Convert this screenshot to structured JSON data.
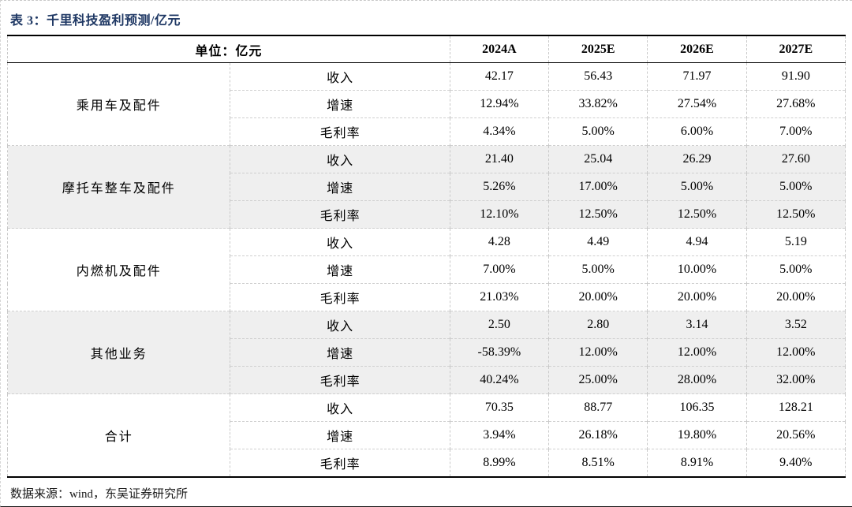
{
  "title": "表 3：千里科技盈利预测/亿元",
  "header": {
    "unit_label": "单位：亿元",
    "year_columns": [
      "2024A",
      "2025E",
      "2026E",
      "2027E"
    ]
  },
  "footer": {
    "source": "数据来源：wind，东吴证券研究所"
  },
  "colors": {
    "title_navy": "#1F3864",
    "stripe_bg": "#EFEFEF",
    "rule_black": "#000000",
    "inner_border": "#C9C9C9"
  },
  "chart_data": {
    "type": "table",
    "title": "表 3：千里科技盈利预测/亿元",
    "columns": [
      "2024A",
      "2025E",
      "2026E",
      "2027E"
    ],
    "metric_labels": [
      "收入",
      "增速",
      "毛利率"
    ],
    "groups": [
      {
        "name": "乘用车及配件",
        "rows": [
          {
            "metric": "收入",
            "values": [
              "42.17",
              "56.43",
              "71.97",
              "91.90"
            ]
          },
          {
            "metric": "增速",
            "values": [
              "12.94%",
              "33.82%",
              "27.54%",
              "27.68%"
            ]
          },
          {
            "metric": "毛利率",
            "values": [
              "4.34%",
              "5.00%",
              "6.00%",
              "7.00%"
            ]
          }
        ]
      },
      {
        "name": "摩托车整车及配件",
        "rows": [
          {
            "metric": "收入",
            "values": [
              "21.40",
              "25.04",
              "26.29",
              "27.60"
            ]
          },
          {
            "metric": "增速",
            "values": [
              "5.26%",
              "17.00%",
              "5.00%",
              "5.00%"
            ]
          },
          {
            "metric": "毛利率",
            "values": [
              "12.10%",
              "12.50%",
              "12.50%",
              "12.50%"
            ]
          }
        ]
      },
      {
        "name": "内燃机及配件",
        "rows": [
          {
            "metric": "收入",
            "values": [
              "4.28",
              "4.49",
              "4.94",
              "5.19"
            ]
          },
          {
            "metric": "增速",
            "values": [
              "7.00%",
              "5.00%",
              "10.00%",
              "5.00%"
            ]
          },
          {
            "metric": "毛利率",
            "values": [
              "21.03%",
              "20.00%",
              "20.00%",
              "20.00%"
            ]
          }
        ]
      },
      {
        "name": "其他业务",
        "rows": [
          {
            "metric": "收入",
            "values": [
              "2.50",
              "2.80",
              "3.14",
              "3.52"
            ]
          },
          {
            "metric": "增速",
            "values": [
              "-58.39%",
              "12.00%",
              "12.00%",
              "12.00%"
            ]
          },
          {
            "metric": "毛利率",
            "values": [
              "40.24%",
              "25.00%",
              "28.00%",
              "32.00%"
            ]
          }
        ]
      },
      {
        "name": "合计",
        "rows": [
          {
            "metric": "收入",
            "values": [
              "70.35",
              "88.77",
              "106.35",
              "128.21"
            ]
          },
          {
            "metric": "增速",
            "values": [
              "3.94%",
              "26.18%",
              "19.80%",
              "20.56%"
            ]
          },
          {
            "metric": "毛利率",
            "values": [
              "8.99%",
              "8.51%",
              "8.91%",
              "9.40%"
            ]
          }
        ]
      }
    ]
  }
}
